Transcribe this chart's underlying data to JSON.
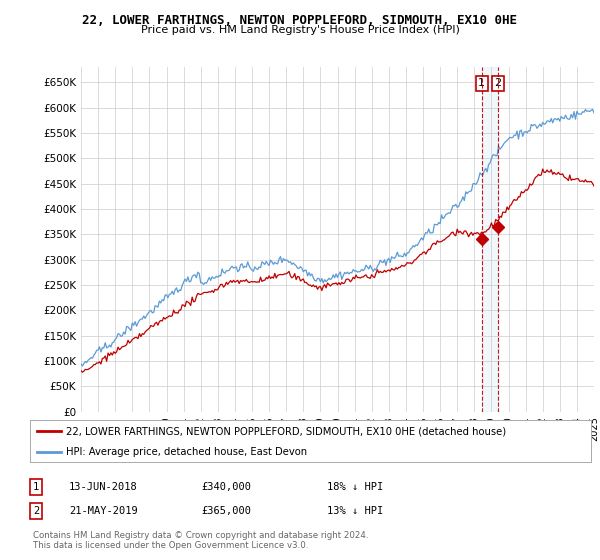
{
  "title": "22, LOWER FARTHINGS, NEWTON POPPLEFORD, SIDMOUTH, EX10 0HE",
  "subtitle": "Price paid vs. HM Land Registry's House Price Index (HPI)",
  "ylabel_ticks": [
    "£0",
    "£50K",
    "£100K",
    "£150K",
    "£200K",
    "£250K",
    "£300K",
    "£350K",
    "£400K",
    "£450K",
    "£500K",
    "£550K",
    "£600K",
    "£650K"
  ],
  "ytick_values": [
    0,
    50000,
    100000,
    150000,
    200000,
    250000,
    300000,
    350000,
    400000,
    450000,
    500000,
    550000,
    600000,
    650000
  ],
  "ylim": [
    0,
    680000
  ],
  "hpi_color": "#5b9bd5",
  "price_color": "#c00000",
  "vline_color": "#c00000",
  "shade_color": "#ddeeff",
  "legend_label_red": "22, LOWER FARTHINGS, NEWTON POPPLEFORD, SIDMOUTH, EX10 0HE (detached house)",
  "legend_label_blue": "HPI: Average price, detached house, East Devon",
  "transaction1_date": "13-JUN-2018",
  "transaction1_price": "£340,000",
  "transaction1_hpi": "18% ↓ HPI",
  "transaction2_date": "21-MAY-2019",
  "transaction2_price": "£365,000",
  "transaction2_hpi": "13% ↓ HPI",
  "footer": "Contains HM Land Registry data © Crown copyright and database right 2024.\nThis data is licensed under the Open Government Licence v3.0.",
  "bg_color": "#ffffff",
  "grid_color": "#cccccc",
  "sale1_x": 2018.44,
  "sale1_y": 340000,
  "sale2_x": 2019.38,
  "sale2_y": 365000,
  "xmin": 1995,
  "xmax": 2025
}
